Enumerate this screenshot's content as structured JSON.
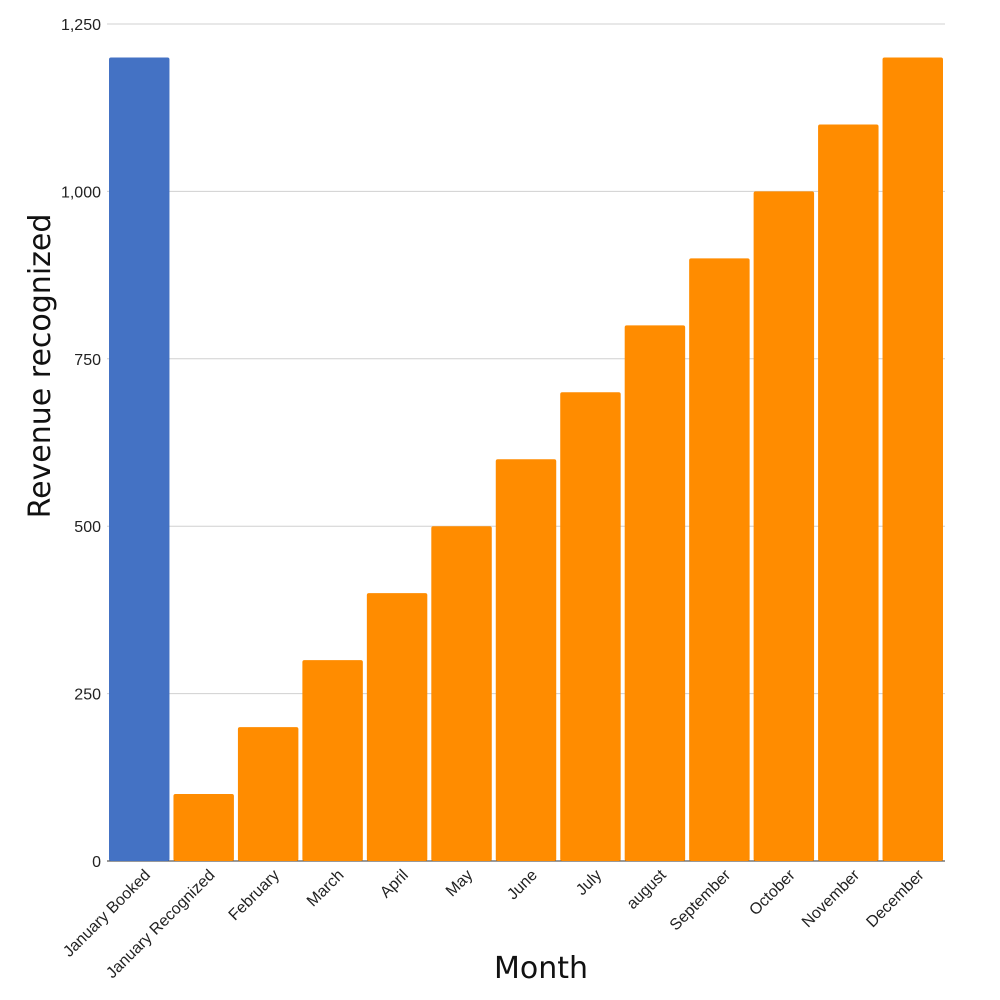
{
  "chart_data": {
    "type": "bar",
    "title": "",
    "xlabel": "Month",
    "ylabel": "Revenue recognized",
    "ylim": [
      0,
      1250
    ],
    "yticks": [
      0,
      250,
      500,
      750,
      1000,
      1250
    ],
    "ytick_labels": [
      "0",
      "250",
      "500",
      "750",
      "1,000",
      "1,250"
    ],
    "grid": true,
    "legend": "none",
    "categories": [
      "January Booked",
      "January Recognized",
      "February",
      "March",
      "April",
      "May",
      "June",
      "July",
      "august",
      "September",
      "October",
      "November",
      "December"
    ],
    "values": [
      1200,
      100,
      200,
      300,
      400,
      500,
      600,
      700,
      800,
      900,
      1000,
      1100,
      1200
    ],
    "bar_colors": [
      "#4472c4",
      "#ff8c00",
      "#ff8c00",
      "#ff8c00",
      "#ff8c00",
      "#ff8c00",
      "#ff8c00",
      "#ff8c00",
      "#ff8c00",
      "#ff8c00",
      "#ff8c00",
      "#ff8c00",
      "#ff8c00"
    ]
  }
}
